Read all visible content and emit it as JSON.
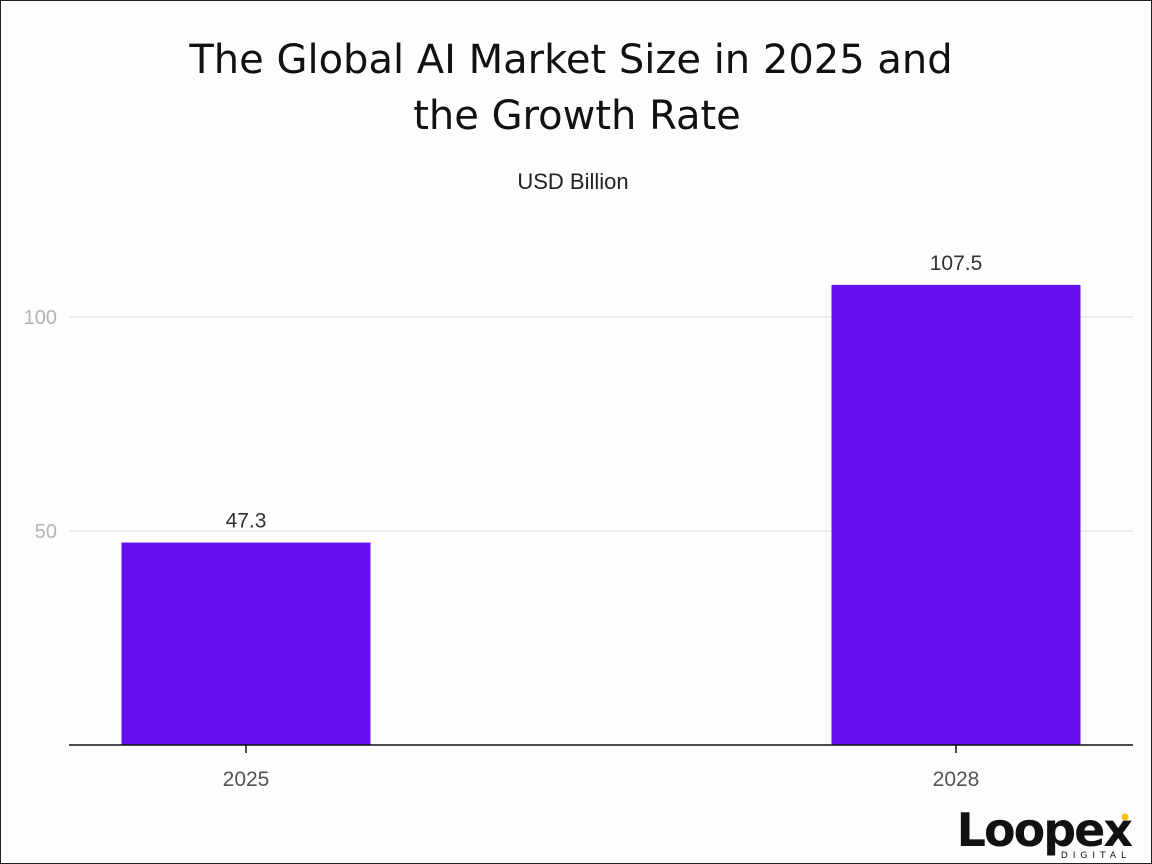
{
  "chart_data": {
    "type": "bar",
    "title_lines": [
      "The Global AI Market Size in 2025 and",
      "the Growth Rate"
    ],
    "subtitle": "USD Billion",
    "categories": [
      "2025",
      "2028"
    ],
    "values": [
      47.3,
      107.5
    ],
    "value_labels": [
      "47.3",
      "107.5"
    ],
    "y_ticks": [
      50,
      100
    ],
    "y_tick_labels": [
      "50",
      "100"
    ],
    "ylim": [
      0,
      120
    ],
    "xlabel": "",
    "ylabel": "",
    "grid": true,
    "legend": "none",
    "bar_color": "#6610f2"
  },
  "branding": {
    "logo_word": "Loopex",
    "logo_sub": "DIGITAL",
    "logo_accent": "#f5c400"
  }
}
